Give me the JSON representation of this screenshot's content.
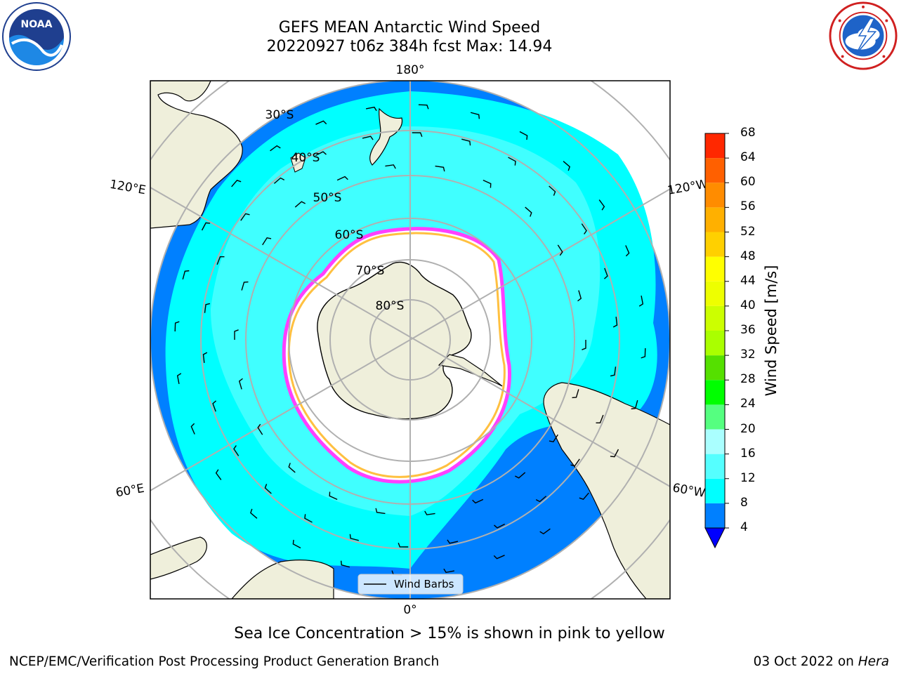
{
  "title": {
    "line1": "GEFS MEAN Antarctic Wind Speed",
    "line2": "20220927 t06z 384h fcst   Max: 14.94"
  },
  "logos": {
    "left": {
      "name": "noaa-logo",
      "text": "NOAA"
    },
    "right": {
      "name": "nws-logo"
    }
  },
  "map": {
    "projection": "south-polar-stereographic",
    "longitude_labels": {
      "top": "180°",
      "bottom": "0°",
      "left_upper": "120°E",
      "left_lower": "60°E",
      "right_upper": "120°W",
      "right_lower": "60°W"
    },
    "latitude_labels": [
      "30°S",
      "40°S",
      "50°S",
      "60°S",
      "70°S",
      "80°S"
    ],
    "legend": {
      "entry": "Wind Barbs"
    },
    "colors": {
      "ocean_low": "#0080ff",
      "ocean_mid": "#00ffff",
      "ocean_high": "#55ffff",
      "land": "#efefdb",
      "ice_pink": "#ff40ff",
      "ice_yellow": "#ffc040"
    }
  },
  "colorbar": {
    "label": "Wind Speed [m/s]",
    "ticks": [
      "4",
      "8",
      "12",
      "16",
      "20",
      "24",
      "28",
      "32",
      "36",
      "40",
      "44",
      "48",
      "52",
      "56",
      "60",
      "64",
      "68"
    ],
    "colors": [
      "#0080ff",
      "#00ffff",
      "#55ffff",
      "#aaffff",
      "#55ff80",
      "#00ff00",
      "#55e000",
      "#aaff00",
      "#ccff00",
      "#eeff00",
      "#ffff00",
      "#ffd000",
      "#ffb000",
      "#ff8c00",
      "#ff6000",
      "#ff2800"
    ],
    "under_color": "#0000ff"
  },
  "footnote": "Sea Ice Concentration > 15% is shown in pink to yellow",
  "credits": {
    "left": "NCEP/EMC/Verification Post Processing Product Generation Branch",
    "right_date": "03 Oct 2022 on ",
    "right_host": "Hera"
  }
}
